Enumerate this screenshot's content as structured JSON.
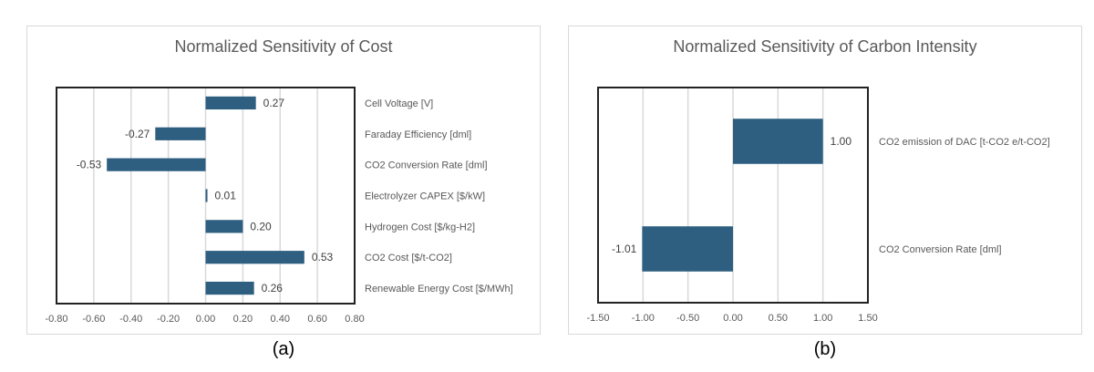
{
  "colors": {
    "bar": "#2e5f80",
    "grid": "#d9d9d9",
    "frame": "#222222"
  },
  "captions": {
    "a": "(a)",
    "b": "(b)"
  },
  "chart_data": [
    {
      "type": "bar",
      "orientation": "horizontal",
      "title": "Normalized Sensitivity of Cost",
      "categories": [
        "Cell Voltage [V]",
        "Faraday Efficiency [dml]",
        "CO2 Conversion Rate [dml]",
        "Electrolyzer CAPEX [$/kW]",
        "Hydrogen Cost [$/kg-H2]",
        "CO2 Cost [$/t-CO2]",
        "Renewable Energy Cost [$/MWh]"
      ],
      "values": [
        0.27,
        -0.27,
        -0.53,
        0.01,
        0.2,
        0.53,
        0.26
      ],
      "data_labels": [
        "0.27",
        "-0.27",
        "-0.53",
        "0.01",
        "0.20",
        "0.53",
        "0.26"
      ],
      "xlim": [
        -0.8,
        0.8
      ],
      "xticks": [
        -0.8,
        -0.6,
        -0.4,
        -0.2,
        0.0,
        0.2,
        0.4,
        0.6,
        0.8
      ],
      "xtick_labels": [
        "-0.80",
        "-0.60",
        "-0.40",
        "-0.20",
        "0.00",
        "0.20",
        "0.40",
        "0.60",
        "0.80"
      ],
      "grid": "vertical",
      "xlabel": "",
      "ylabel": ""
    },
    {
      "type": "bar",
      "orientation": "horizontal",
      "title": "Normalized Sensitivity of Carbon Intensity",
      "categories": [
        "CO2 emission of DAC [t-CO2 e/t-CO2]",
        "CO2 Conversion Rate [dml]"
      ],
      "values": [
        1.0,
        -1.01
      ],
      "data_labels": [
        "1.00",
        "-1.01"
      ],
      "xlim": [
        -1.5,
        1.5
      ],
      "xticks": [
        -1.5,
        -1.0,
        -0.5,
        0.0,
        0.5,
        1.0,
        1.5
      ],
      "xtick_labels": [
        "-1.50",
        "-1.00",
        "-0.50",
        "0.00",
        "0.50",
        "1.00",
        "1.50"
      ],
      "grid": "vertical",
      "xlabel": "",
      "ylabel": ""
    }
  ]
}
